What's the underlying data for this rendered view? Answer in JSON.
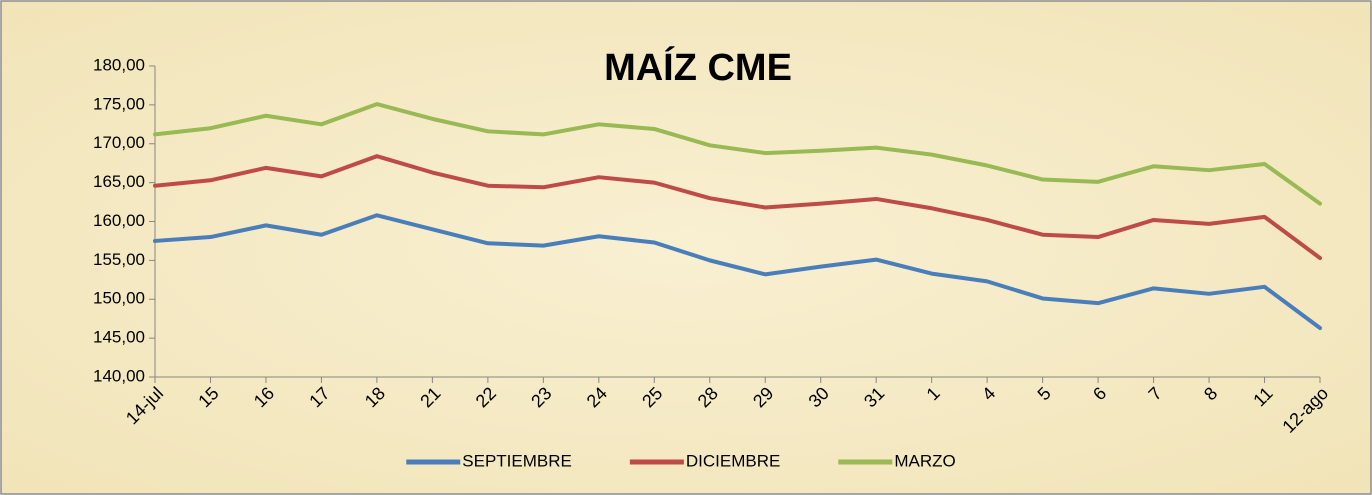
{
  "chart_data": {
    "type": "line",
    "title": "MAÍZ CME",
    "categories": [
      "14-jul",
      "15",
      "16",
      "17",
      "18",
      "21",
      "22",
      "23",
      "24",
      "25",
      "28",
      "29",
      "30",
      "31",
      "1",
      "4",
      "5",
      "6",
      "7",
      "8",
      "11",
      "12-ago"
    ],
    "series": [
      {
        "name": "SEPTIEMBRE",
        "color": "#4a7ebb",
        "values": [
          157.5,
          158.0,
          159.5,
          158.3,
          160.8,
          159.0,
          157.2,
          156.9,
          158.1,
          157.3,
          155.0,
          153.2,
          154.2,
          155.1,
          153.3,
          152.3,
          150.1,
          149.5,
          151.4,
          150.7,
          151.6,
          146.3
        ]
      },
      {
        "name": "DICIEMBRE",
        "color": "#be4b48",
        "values": [
          164.6,
          165.3,
          166.9,
          165.8,
          168.4,
          166.3,
          164.6,
          164.4,
          165.7,
          165.0,
          163.0,
          161.8,
          162.3,
          162.9,
          161.7,
          160.2,
          158.3,
          158.0,
          160.2,
          159.7,
          160.6,
          155.3
        ]
      },
      {
        "name": "MARZO",
        "color": "#98b954",
        "values": [
          171.2,
          172.0,
          173.6,
          172.5,
          175.1,
          173.2,
          171.6,
          171.2,
          172.5,
          171.9,
          169.8,
          168.8,
          169.1,
          169.5,
          168.6,
          167.2,
          165.4,
          165.1,
          167.1,
          166.6,
          167.4,
          162.3
        ]
      }
    ],
    "ylim": [
      140,
      180
    ],
    "yticks": [
      {
        "value": 140,
        "label": "140,00"
      },
      {
        "value": 145,
        "label": "145,00"
      },
      {
        "value": 150,
        "label": "150,00"
      },
      {
        "value": 155,
        "label": "155,00"
      },
      {
        "value": 160,
        "label": "160,00"
      },
      {
        "value": 165,
        "label": "165,00"
      },
      {
        "value": 170,
        "label": "170,00"
      },
      {
        "value": 175,
        "label": "175,00"
      },
      {
        "value": 180,
        "label": "180,00"
      }
    ],
    "grid": false,
    "legend": "bottom"
  }
}
